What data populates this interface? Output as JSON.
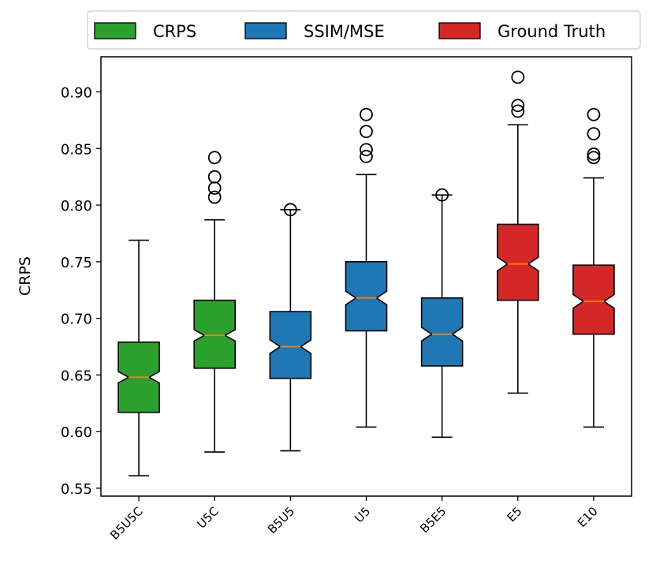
{
  "chart_data": {
    "type": "boxplot",
    "notched": true,
    "title": "",
    "xlabel": "",
    "ylabel": "CRPS",
    "ylim": [
      0.543,
      0.931
    ],
    "yticks": [
      "0.55",
      "0.60",
      "0.65",
      "0.70",
      "0.75",
      "0.80",
      "0.85",
      "0.90"
    ],
    "legend": {
      "position": "top",
      "entries": [
        {
          "label": "CRPS",
          "color": "#2ca02c"
        },
        {
          "label": "SSIM/MSE",
          "color": "#1f77b4"
        },
        {
          "label": "Ground Truth",
          "color": "#d62728"
        }
      ]
    },
    "categories": [
      "B5U5C",
      "U5C",
      "B5U5",
      "U5",
      "B5E5",
      "E5",
      "E10"
    ],
    "boxes": [
      {
        "label": "B5U5C",
        "group": "CRPS",
        "whisker_low": 0.561,
        "q1": 0.617,
        "median": 0.648,
        "q3": 0.679,
        "whisker_high": 0.769,
        "notch_low": 0.643,
        "notch_high": 0.653,
        "outliers": []
      },
      {
        "label": "U5C",
        "group": "CRPS",
        "whisker_low": 0.582,
        "q1": 0.656,
        "median": 0.685,
        "q3": 0.716,
        "whisker_high": 0.787,
        "notch_low": 0.68,
        "notch_high": 0.69,
        "outliers": [
          0.842,
          0.825,
          0.815,
          0.807
        ]
      },
      {
        "label": "B5U5",
        "group": "SSIM/MSE",
        "whisker_low": 0.583,
        "q1": 0.647,
        "median": 0.675,
        "q3": 0.706,
        "whisker_high": 0.796,
        "notch_low": 0.669,
        "notch_high": 0.681,
        "outliers": [
          0.796
        ]
      },
      {
        "label": "U5",
        "group": "SSIM/MSE",
        "whisker_low": 0.604,
        "q1": 0.689,
        "median": 0.718,
        "q3": 0.75,
        "whisker_high": 0.827,
        "notch_low": 0.712,
        "notch_high": 0.724,
        "outliers": [
          0.88,
          0.865,
          0.849,
          0.843
        ]
      },
      {
        "label": "B5E5",
        "group": "SSIM/MSE",
        "whisker_low": 0.595,
        "q1": 0.658,
        "median": 0.686,
        "q3": 0.718,
        "whisker_high": 0.809,
        "notch_low": 0.68,
        "notch_high": 0.692,
        "outliers": [
          0.809
        ]
      },
      {
        "label": "E5",
        "group": "Ground Truth",
        "whisker_low": 0.634,
        "q1": 0.716,
        "median": 0.748,
        "q3": 0.783,
        "whisker_high": 0.871,
        "notch_low": 0.742,
        "notch_high": 0.754,
        "outliers": [
          0.913,
          0.888,
          0.883
        ]
      },
      {
        "label": "E10",
        "group": "Ground Truth",
        "whisker_low": 0.604,
        "q1": 0.686,
        "median": 0.715,
        "q3": 0.747,
        "whisker_high": 0.824,
        "notch_low": 0.709,
        "notch_high": 0.721,
        "outliers": [
          0.88,
          0.863,
          0.845,
          0.842
        ]
      }
    ],
    "median_color": "#ff7f0e"
  }
}
